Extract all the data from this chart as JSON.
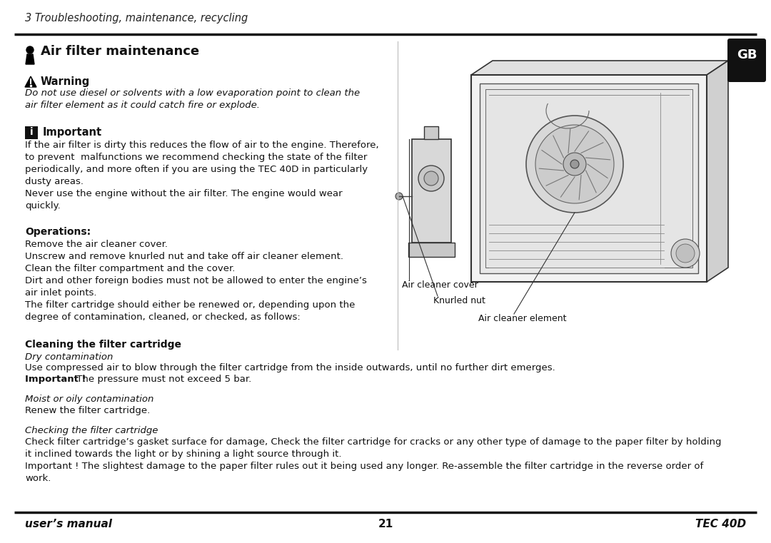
{
  "bg_color": "#ffffff",
  "header_text": "3 Troubleshooting, maintenance, recycling",
  "section_title": "Air filter maintenance",
  "gb_badge_text": "GB",
  "warning_title": "Warning",
  "warning_body": "Do not use diesel or solvents with a low evaporation point to clean the\nair filter element as it could catch fire or explode.",
  "important_title": "Important",
  "important_body": "If the air filter is dirty this reduces the flow of air to the engine. Therefore,\nto prevent  malfunctions we recommend checking the state of the filter\nperiodically, and more often if you are using the TEC 40D in particularly\ndusty areas.\nNever use the engine without the air filter. The engine would wear\nquickly.",
  "operations_title": "Operations:",
  "operations_text": "Remove the air cleaner cover.\nUnscrew and remove knurled nut and take off air cleaner element.\nClean the filter compartment and the cover.\nDirt and other foreign bodies must not be allowed to enter the engine’s\nair inlet points.\nThe filter cartridge should either be renewed or, depending upon the\ndegree of contamination, cleaned, or checked, as follows:",
  "cleaning_title": "Cleaning the filter cartridge",
  "dry_contamination_italic": "Dry contamination",
  "dry_contamination_body": "Use compressed air to blow through the filter cartridge from the inside outwards, until no further dirt emerges.",
  "dry_important": "Important !",
  "dry_important_body": " The pressure must not exceed 5 bar.",
  "moist_italic": "Moist or oily contamination",
  "moist_body": "Renew the filter cartridge.",
  "checking_italic": "Checking the filter cartridge",
  "checking_body": "Check filter cartridge’s gasket surface for damage, Check the filter cartridge for cracks or any other type of damage to the paper filter by holding\nit inclined towards the light or by shining a light source through it.\nImportant ! The slightest damage to the paper filter rules out it being used any longer. Re-assemble the filter cartridge in the reverse order of\nwork.",
  "footer_left": "user’s manual",
  "footer_center": "21",
  "footer_right": "TEC 40D",
  "label_air_cleaner_cover": "Air cleaner cover",
  "label_knurled_nut": "Knurled nut",
  "label_air_cleaner_element": "Air cleaner element"
}
